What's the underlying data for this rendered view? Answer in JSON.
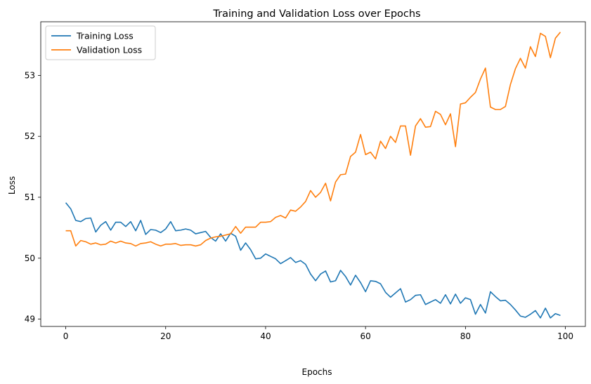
{
  "chart_data": {
    "type": "line",
    "title": "Training and Validation Loss over Epochs",
    "xlabel": "Epochs",
    "ylabel": "Loss",
    "xlim": [
      -5,
      104
    ],
    "ylim": [
      48.88,
      53.88
    ],
    "xticks": [
      0,
      20,
      40,
      60,
      80,
      100
    ],
    "yticks": [
      49,
      50,
      51,
      52,
      53
    ],
    "grid": false,
    "legend_position": "upper-left",
    "series": [
      {
        "name": "Training Loss",
        "color": "#1f77b4",
        "x": [
          0,
          1,
          2,
          3,
          4,
          5,
          6,
          7,
          8,
          9,
          10,
          11,
          12,
          13,
          14,
          15,
          16,
          17,
          18,
          19,
          20,
          21,
          22,
          23,
          24,
          25,
          26,
          27,
          28,
          29,
          30,
          31,
          32,
          33,
          34,
          35,
          36,
          37,
          38,
          39,
          40,
          41,
          42,
          43,
          44,
          45,
          46,
          47,
          48,
          49,
          50,
          51,
          52,
          53,
          54,
          55,
          56,
          57,
          58,
          59,
          60,
          61,
          62,
          63,
          64,
          65,
          66,
          67,
          68,
          69,
          70,
          71,
          72,
          73,
          74,
          75,
          76,
          77,
          78,
          79,
          80,
          81,
          82,
          83,
          84,
          85,
          86,
          87,
          88,
          89,
          90,
          91,
          92,
          93,
          94,
          95,
          96,
          97,
          98,
          99
        ],
        "values": [
          50.91,
          50.81,
          50.62,
          50.6,
          50.65,
          50.66,
          50.43,
          50.54,
          50.6,
          50.46,
          50.59,
          50.59,
          50.52,
          50.6,
          50.45,
          50.62,
          50.39,
          50.47,
          50.46,
          50.42,
          50.48,
          50.6,
          50.45,
          50.46,
          50.48,
          50.46,
          50.4,
          50.42,
          50.44,
          50.34,
          50.28,
          50.4,
          50.28,
          50.41,
          50.36,
          50.13,
          50.25,
          50.14,
          49.99,
          50.0,
          50.07,
          50.03,
          49.99,
          49.91,
          49.96,
          50.01,
          49.93,
          49.96,
          49.9,
          49.74,
          49.63,
          49.74,
          49.79,
          49.61,
          49.63,
          49.8,
          49.7,
          49.56,
          49.72,
          49.6,
          49.45,
          49.63,
          49.62,
          49.58,
          49.44,
          49.36,
          49.43,
          49.5,
          49.28,
          49.32,
          49.39,
          49.4,
          49.24,
          49.28,
          49.32,
          49.26,
          49.4,
          49.25,
          49.41,
          49.26,
          49.35,
          49.32,
          49.08,
          49.24,
          49.1,
          49.45,
          49.37,
          49.3,
          49.31,
          49.24,
          49.15,
          49.05,
          49.03,
          49.08,
          49.14,
          49.02,
          49.18,
          49.02,
          49.09,
          49.06
        ]
      },
      {
        "name": "Validation Loss",
        "color": "#ff7f0e",
        "x": [
          0,
          1,
          2,
          3,
          4,
          5,
          6,
          7,
          8,
          9,
          10,
          11,
          12,
          13,
          14,
          15,
          16,
          17,
          18,
          19,
          20,
          21,
          22,
          23,
          24,
          25,
          26,
          27,
          28,
          29,
          30,
          31,
          32,
          33,
          34,
          35,
          36,
          37,
          38,
          39,
          40,
          41,
          42,
          43,
          44,
          45,
          46,
          47,
          48,
          49,
          50,
          51,
          52,
          53,
          54,
          55,
          56,
          57,
          58,
          59,
          60,
          61,
          62,
          63,
          64,
          65,
          66,
          67,
          68,
          69,
          70,
          71,
          72,
          73,
          74,
          75,
          76,
          77,
          78,
          79,
          80,
          81,
          82,
          83,
          84,
          85,
          86,
          87,
          88,
          89,
          90,
          91,
          92,
          93,
          94,
          95,
          96,
          97,
          98,
          99
        ],
        "values": [
          50.45,
          50.45,
          50.2,
          50.29,
          50.27,
          50.23,
          50.25,
          50.22,
          50.23,
          50.28,
          50.25,
          50.28,
          50.25,
          50.24,
          50.2,
          50.24,
          50.25,
          50.27,
          50.23,
          50.2,
          50.23,
          50.23,
          50.24,
          50.21,
          50.22,
          50.22,
          50.2,
          50.22,
          50.29,
          50.33,
          50.35,
          50.36,
          50.38,
          50.4,
          50.52,
          50.41,
          50.51,
          50.51,
          50.51,
          50.59,
          50.59,
          50.6,
          50.67,
          50.7,
          50.66,
          50.79,
          50.77,
          50.84,
          50.93,
          51.11,
          51.0,
          51.08,
          51.23,
          50.94,
          51.25,
          51.37,
          51.38,
          51.67,
          51.74,
          52.03,
          51.7,
          51.74,
          51.63,
          51.92,
          51.8,
          52.0,
          51.9,
          52.17,
          52.17,
          51.69,
          52.17,
          52.29,
          52.15,
          52.16,
          52.41,
          52.36,
          52.19,
          52.37,
          51.83,
          52.53,
          52.55,
          52.64,
          52.72,
          52.94,
          53.12,
          52.48,
          52.44,
          52.44,
          52.49,
          52.85,
          53.11,
          53.28,
          53.12,
          53.47,
          53.31,
          53.69,
          53.64,
          53.29,
          53.61,
          53.71
        ]
      }
    ]
  }
}
